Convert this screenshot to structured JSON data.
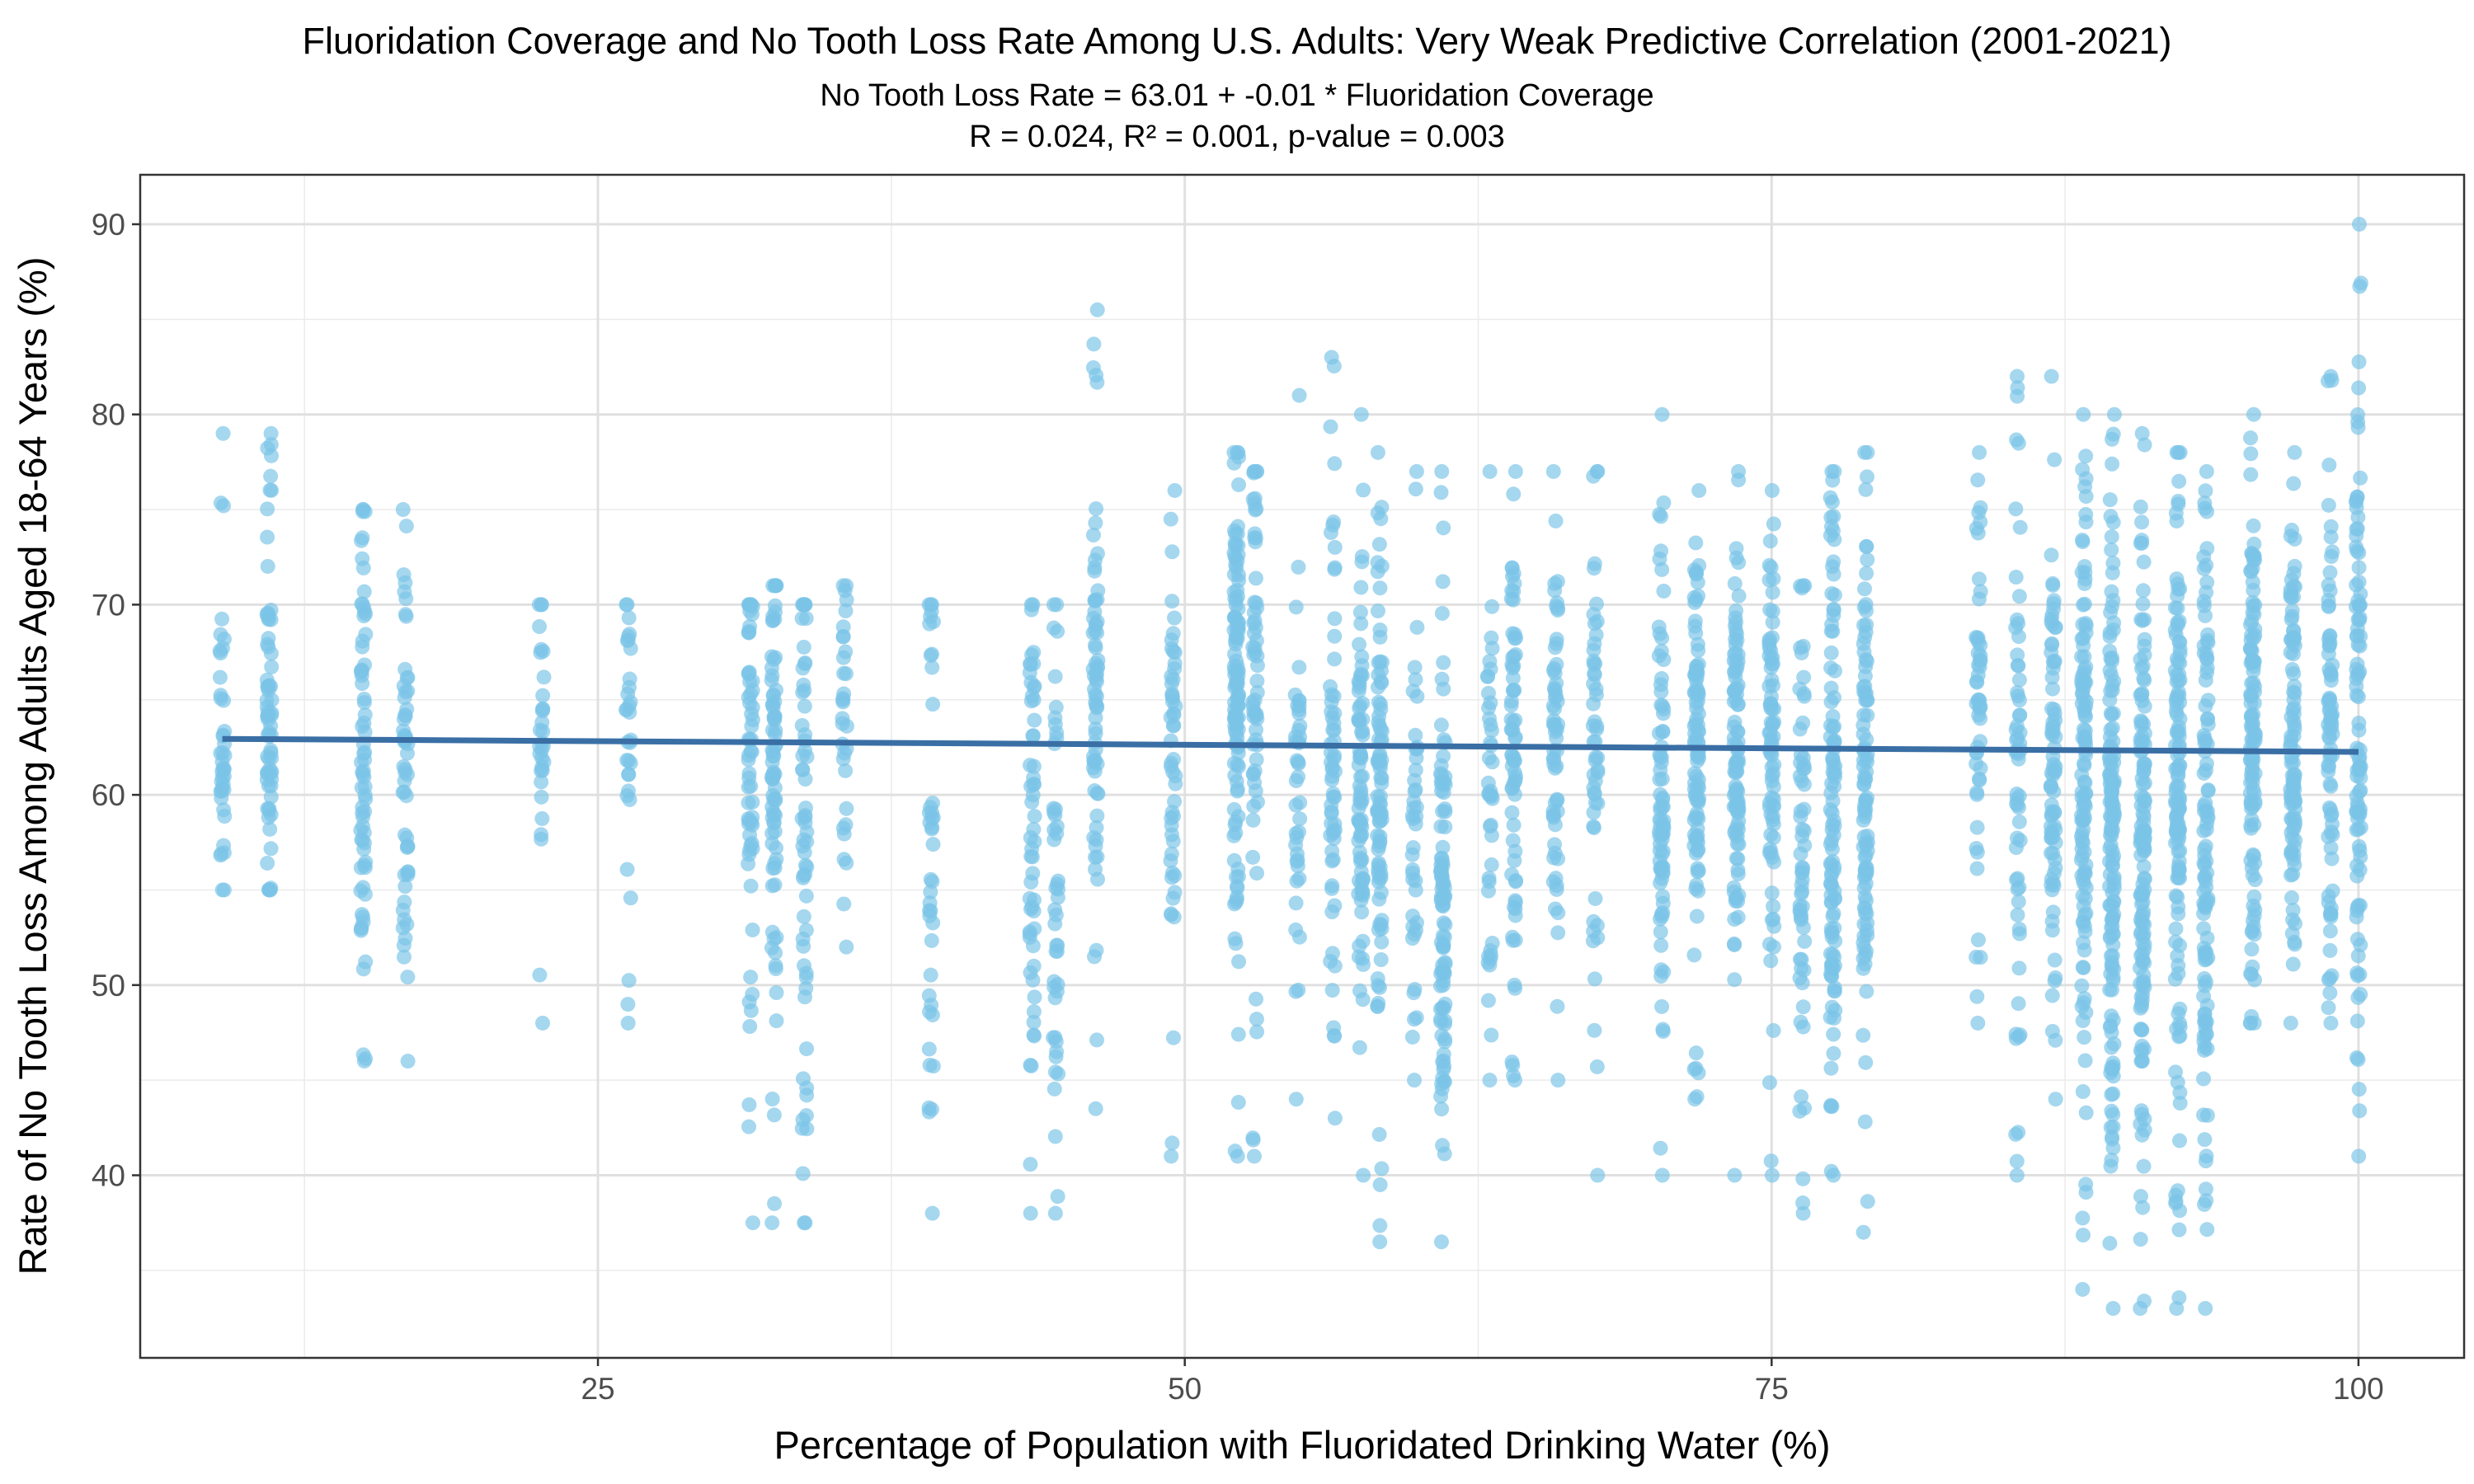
{
  "chart_data": {
    "type": "scatter",
    "title": "Fluoridation Coverage and No Tooth Loss Rate Among U.S. Adults: Very Weak Predictive Correlation (2001-2021)",
    "subtitle_lines": [
      "No Tooth Loss Rate = 63.01 + -0.01 * Fluoridation Coverage",
      "R = 0.024, R² = 0.001, p-value = 0.003"
    ],
    "xlabel": "Percentage of Population with Fluoridated Drinking Water (%)",
    "ylabel": "Rate of No Tooth Loss Among Adults Aged 18-64 Years (%)",
    "xlim": [
      5.5,
      104.5
    ],
    "ylim": [
      30.4,
      92.6
    ],
    "x_ticks": [
      25,
      50,
      75,
      100
    ],
    "y_ticks": [
      40,
      50,
      60,
      70,
      80,
      90
    ],
    "grid": true,
    "point_color": "#7bc4e8",
    "line_color": "#3a6fa5",
    "regression": {
      "intercept": 63.01,
      "slope": -0.0075,
      "x_range": [
        9,
        100
      ]
    },
    "columns": [
      {
        "x": 9,
        "ymin": 55,
        "ymax": 79,
        "center": 64,
        "spread": 4,
        "n": 40
      },
      {
        "x": 11,
        "ymin": 55,
        "ymax": 79,
        "center": 64,
        "spread": 4,
        "n": 70
      },
      {
        "x": 15,
        "ymin": 46,
        "ymax": 75,
        "center": 62,
        "spread": 6,
        "n": 70
      },
      {
        "x": 16.8,
        "ymin": 46,
        "ymax": 75,
        "center": 62,
        "spread": 6,
        "n": 55
      },
      {
        "x": 22.6,
        "ymin": 48,
        "ymax": 70,
        "center": 64,
        "spread": 4,
        "n": 30
      },
      {
        "x": 26.3,
        "ymin": 48,
        "ymax": 70,
        "center": 64,
        "spread": 4,
        "n": 30
      },
      {
        "x": 31.5,
        "ymin": 37.5,
        "ymax": 70,
        "center": 62,
        "spread": 8,
        "n": 60
      },
      {
        "x": 32.5,
        "ymin": 37.5,
        "ymax": 71,
        "center": 62,
        "spread": 7,
        "n": 80
      },
      {
        "x": 33.8,
        "ymin": 37.5,
        "ymax": 70,
        "center": 61,
        "spread": 8,
        "n": 60
      },
      {
        "x": 35.5,
        "ymin": 52,
        "ymax": 71,
        "center": 65,
        "spread": 4,
        "n": 30
      },
      {
        "x": 39.2,
        "ymin": 38,
        "ymax": 70,
        "center": 56,
        "spread": 8,
        "n": 40
      },
      {
        "x": 43.5,
        "ymin": 38,
        "ymax": 70,
        "center": 58,
        "spread": 7,
        "n": 55
      },
      {
        "x": 44.5,
        "ymin": 38,
        "ymax": 70,
        "center": 58,
        "spread": 7,
        "n": 45
      },
      {
        "x": 46.2,
        "ymin": 43.5,
        "ymax": 85.5,
        "center": 65,
        "spread": 5,
        "n": 70
      },
      {
        "x": 49.5,
        "ymin": 41,
        "ymax": 76,
        "center": 63,
        "spread": 6,
        "n": 50
      },
      {
        "x": 52.2,
        "ymin": 41,
        "ymax": 78,
        "center": 66,
        "spread": 5,
        "n": 120
      },
      {
        "x": 53,
        "ymin": 41,
        "ymax": 77,
        "center": 66,
        "spread": 5,
        "n": 60
      },
      {
        "x": 54.8,
        "ymin": 44,
        "ymax": 81,
        "center": 60,
        "spread": 5,
        "n": 40
      },
      {
        "x": 56.3,
        "ymin": 43,
        "ymax": 83,
        "center": 61,
        "spread": 6,
        "n": 60
      },
      {
        "x": 57.5,
        "ymin": 40,
        "ymax": 80,
        "center": 60,
        "spread": 6,
        "n": 80
      },
      {
        "x": 58.3,
        "ymin": 36.5,
        "ymax": 78,
        "center": 60,
        "spread": 7,
        "n": 90
      },
      {
        "x": 59.8,
        "ymin": 45,
        "ymax": 77,
        "center": 58,
        "spread": 6,
        "n": 40
      },
      {
        "x": 61,
        "ymin": 36.5,
        "ymax": 77,
        "center": 53,
        "spread": 6,
        "n": 100
      },
      {
        "x": 63,
        "ymin": 45,
        "ymax": 77,
        "center": 59,
        "spread": 5,
        "n": 40
      },
      {
        "x": 64,
        "ymin": 45,
        "ymax": 77,
        "center": 62,
        "spread": 5,
        "n": 70
      },
      {
        "x": 65.8,
        "ymin": 45,
        "ymax": 77,
        "center": 62,
        "spread": 5,
        "n": 60
      },
      {
        "x": 67.5,
        "ymin": 40,
        "ymax": 77,
        "center": 62,
        "spread": 6,
        "n": 50
      },
      {
        "x": 70.3,
        "ymin": 40,
        "ymax": 80,
        "center": 60,
        "spread": 5,
        "n": 80
      },
      {
        "x": 71.8,
        "ymin": 44,
        "ymax": 76,
        "center": 63,
        "spread": 5,
        "n": 100
      },
      {
        "x": 73.5,
        "ymin": 40,
        "ymax": 77,
        "center": 62,
        "spread": 5,
        "n": 100
      },
      {
        "x": 75,
        "ymin": 40,
        "ymax": 76,
        "center": 63,
        "spread": 5,
        "n": 80
      },
      {
        "x": 76.3,
        "ymin": 38,
        "ymax": 71,
        "center": 58,
        "spread": 6,
        "n": 60
      },
      {
        "x": 77.6,
        "ymin": 40,
        "ymax": 77,
        "center": 59,
        "spread": 7,
        "n": 110
      },
      {
        "x": 79,
        "ymin": 37,
        "ymax": 78,
        "center": 60,
        "spread": 7,
        "n": 100
      },
      {
        "x": 83.8,
        "ymin": 48,
        "ymax": 78,
        "center": 64,
        "spread": 5,
        "n": 50
      },
      {
        "x": 85.5,
        "ymin": 40,
        "ymax": 82,
        "center": 62,
        "spread": 6,
        "n": 60
      },
      {
        "x": 87,
        "ymin": 44,
        "ymax": 82,
        "center": 62,
        "spread": 6,
        "n": 80
      },
      {
        "x": 88.3,
        "ymin": 34,
        "ymax": 80,
        "center": 60,
        "spread": 7,
        "n": 120
      },
      {
        "x": 89.5,
        "ymin": 33,
        "ymax": 80,
        "center": 58,
        "spread": 8,
        "n": 150
      },
      {
        "x": 90.8,
        "ymin": 33,
        "ymax": 79,
        "center": 58,
        "spread": 7,
        "n": 140
      },
      {
        "x": 92.3,
        "ymin": 33,
        "ymax": 78,
        "center": 60,
        "spread": 7,
        "n": 130
      },
      {
        "x": 93.5,
        "ymin": 33,
        "ymax": 77,
        "center": 59,
        "spread": 7,
        "n": 110
      },
      {
        "x": 95.5,
        "ymin": 48,
        "ymax": 80,
        "center": 64,
        "spread": 6,
        "n": 120
      },
      {
        "x": 97.2,
        "ymin": 48,
        "ymax": 78,
        "center": 63,
        "spread": 6,
        "n": 100
      },
      {
        "x": 98.8,
        "ymin": 48,
        "ymax": 82,
        "center": 62,
        "spread": 6,
        "n": 80
      },
      {
        "x": 100,
        "ymin": 41,
        "ymax": 90,
        "center": 63,
        "spread": 8,
        "n": 100
      }
    ]
  }
}
